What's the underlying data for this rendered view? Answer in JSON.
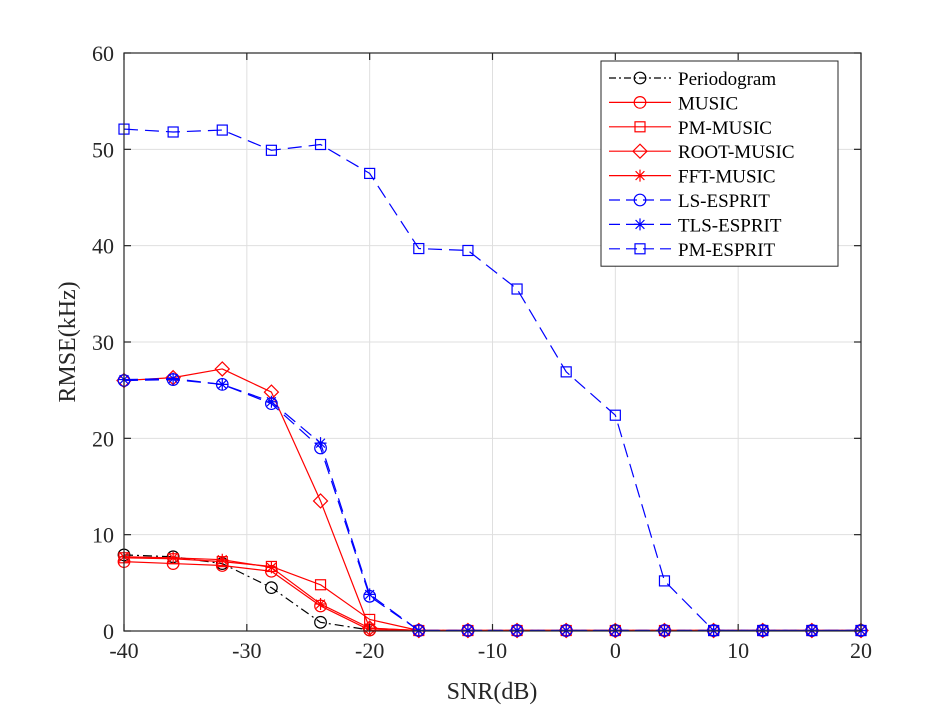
{
  "chart_data": {
    "type": "line",
    "title": "",
    "xlabel": "SNR(dB)",
    "ylabel": "RMSE(kHz)",
    "xlim": [
      -40,
      20
    ],
    "ylim": [
      0,
      60
    ],
    "xticks": [
      -40,
      -30,
      -20,
      -10,
      0,
      10,
      20
    ],
    "yticks": [
      0,
      10,
      20,
      30,
      40,
      50,
      60
    ],
    "grid": true,
    "legend_position": "top-right",
    "x": [
      -40,
      -36,
      -32,
      -28,
      -24,
      -20,
      -16,
      -12,
      -8,
      -4,
      0,
      4,
      8,
      12,
      16,
      20
    ],
    "series": [
      {
        "name": "Periodogram",
        "color": "#000000",
        "dash": "dashdot",
        "marker": "circle",
        "values": [
          7.9,
          7.7,
          7.0,
          4.5,
          0.9,
          0.1,
          0.05,
          0.05,
          0.05,
          0.05,
          0.05,
          0.05,
          0.05,
          0.05,
          0.05,
          0.05
        ]
      },
      {
        "name": "MUSIC",
        "color": "#ff0000",
        "dash": "solid",
        "marker": "circle",
        "values": [
          7.2,
          7.0,
          6.8,
          6.2,
          2.6,
          0.1,
          0.05,
          0.05,
          0.05,
          0.05,
          0.05,
          0.05,
          0.05,
          0.05,
          0.05,
          0.05
        ]
      },
      {
        "name": "PM-MUSIC",
        "color": "#ff0000",
        "dash": "solid",
        "marker": "square",
        "values": [
          7.6,
          7.5,
          7.2,
          6.7,
          4.8,
          1.2,
          0.05,
          0.05,
          0.05,
          0.05,
          0.05,
          0.05,
          0.05,
          0.05,
          0.05,
          0.05
        ]
      },
      {
        "name": "ROOT-MUSIC",
        "color": "#ff0000",
        "dash": "solid",
        "marker": "diamond",
        "values": [
          26.0,
          26.3,
          27.2,
          24.8,
          13.5,
          0.3,
          0.05,
          0.05,
          0.05,
          0.05,
          0.05,
          0.05,
          0.05,
          0.05,
          0.05,
          0.05
        ]
      },
      {
        "name": "FFT-MUSIC",
        "color": "#ff0000",
        "dash": "solid",
        "marker": "asterisk",
        "values": [
          7.7,
          7.6,
          7.4,
          6.6,
          2.8,
          0.3,
          0.05,
          0.05,
          0.05,
          0.05,
          0.05,
          0.05,
          0.05,
          0.05,
          0.05,
          0.05
        ]
      },
      {
        "name": "LS-ESPRIT",
        "color": "#0000ff",
        "dash": "longdash",
        "marker": "circle",
        "values": [
          26.0,
          26.1,
          25.6,
          23.6,
          19.0,
          3.6,
          0.05,
          0.05,
          0.05,
          0.05,
          0.05,
          0.05,
          0.05,
          0.05,
          0.05,
          0.05
        ]
      },
      {
        "name": "TLS-ESPRIT",
        "color": "#0000ff",
        "dash": "longdash",
        "marker": "asterisk",
        "values": [
          26.1,
          26.2,
          25.6,
          23.8,
          19.5,
          3.8,
          0.05,
          0.05,
          0.05,
          0.05,
          0.05,
          0.05,
          0.05,
          0.05,
          0.05,
          0.05
        ]
      },
      {
        "name": "PM-ESPRIT",
        "color": "#0000ff",
        "dash": "longdash",
        "marker": "square",
        "values": [
          52.1,
          51.8,
          52.0,
          49.9,
          50.5,
          47.5,
          39.7,
          39.5,
          35.5,
          26.9,
          22.4,
          5.2,
          0.05,
          0.05,
          0.05,
          0.05
        ]
      }
    ]
  }
}
